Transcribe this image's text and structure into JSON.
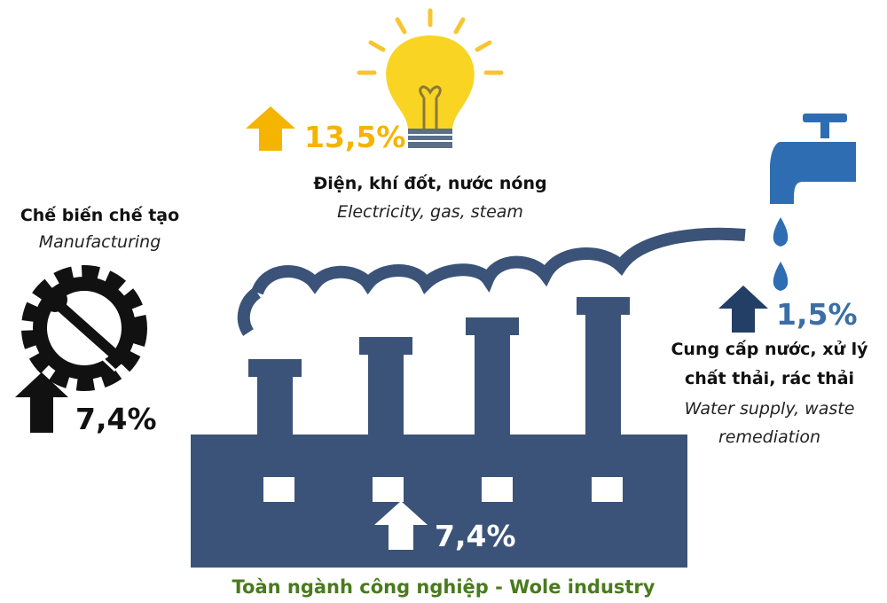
{
  "sectors": [
    {
      "name_vi": "Chế biến chế tạo",
      "name_en": "Manufacturing",
      "change": "7,4%"
    },
    {
      "name_vi": "Điện, khí đốt, nước nóng",
      "name_en": "Electricity, gas, steam",
      "change": "13,5%"
    },
    {
      "name_vi": [
        "Cung cấp nước, xử lý",
        "chất thải, rác thải"
      ],
      "name_en": [
        "Water supply, waste",
        "remediation"
      ],
      "change": "1,5%"
    }
  ],
  "total": {
    "change": "7,4%",
    "label": "Toàn ngành công nghiệp - Wole industry"
  }
}
